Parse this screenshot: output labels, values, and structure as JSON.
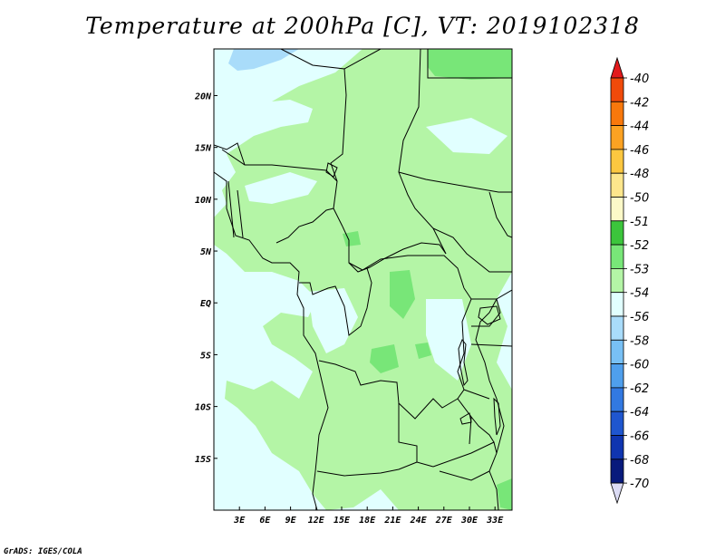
{
  "title": "Temperature at 200hPa [C], VT: 2019102318",
  "credit": "GrADS: IGES/COLA",
  "map": {
    "lon_ticks": [
      "3E",
      "6E",
      "9E",
      "12E",
      "15E",
      "18E",
      "21E",
      "24E",
      "27E",
      "30E",
      "33E"
    ],
    "lat_ticks": [
      "20N",
      "15N",
      "10N",
      "5N",
      "EQ",
      "5S",
      "10S",
      "15S"
    ],
    "lon_range": [
      0,
      35
    ],
    "lat_range": [
      -20,
      24.5
    ]
  },
  "colorbar": {
    "labels": [
      "-40",
      "-42",
      "-44",
      "-46",
      "-48",
      "-50",
      "-51",
      "-52",
      "-53",
      "-54",
      "-56",
      "-58",
      "-60",
      "-62",
      "-64",
      "-66",
      "-68",
      "-70"
    ],
    "colors": [
      "#e31a1c",
      "#f04a0a",
      "#f8780c",
      "#fca222",
      "#fcc740",
      "#fde68c",
      "#fcf9c8",
      "#3cc53c",
      "#78e678",
      "#b4f5a6",
      "#e1ffff",
      "#a9dcfa",
      "#78c0f5",
      "#4f9fec",
      "#3279e1",
      "#1f56cf",
      "#0f35b0",
      "#081a7c",
      "#dcdcf5"
    ],
    "top_color": "#e31a1c",
    "bottom_color": "#dcdcf5"
  }
}
